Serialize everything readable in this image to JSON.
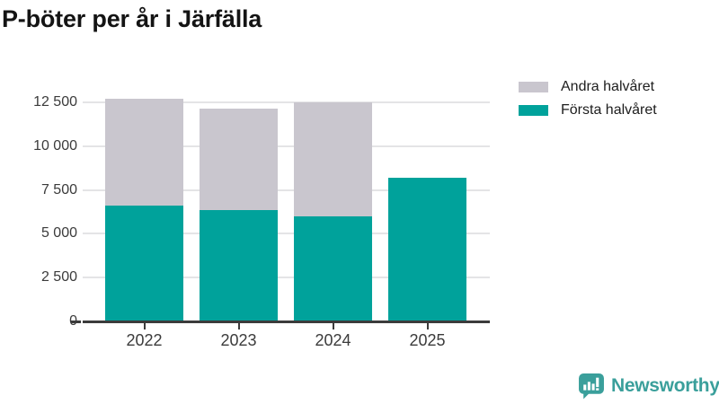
{
  "title": "P-böter per år i Järfälla",
  "legend": {
    "items": [
      {
        "label": "Andra halvåret",
        "color": "#c9c6ce"
      },
      {
        "label": "Första halvåret",
        "color": "#00a29b"
      }
    ]
  },
  "branding": {
    "logo_text": "Newsworthy",
    "logo_color": "#3a9f9b"
  },
  "chart_data": {
    "type": "bar",
    "stacked": true,
    "title": "P-böter per år i Järfälla",
    "categories": [
      "2022",
      "2023",
      "2024",
      "2025"
    ],
    "series": [
      {
        "name": "Första halvåret",
        "color": "#00a29b",
        "values": [
          6600,
          6350,
          6000,
          8200
        ]
      },
      {
        "name": "Andra halvåret",
        "color": "#c9c6ce",
        "values": [
          6100,
          5800,
          6500,
          0
        ]
      }
    ],
    "totals": [
      12700,
      12150,
      12500,
      8200
    ],
    "xlabel": "",
    "ylabel": "",
    "ylim": [
      0,
      12960
    ],
    "yticks": [
      {
        "value": 0,
        "label": "0"
      },
      {
        "value": 2500,
        "label": "2 500"
      },
      {
        "value": 5000,
        "label": "5 000"
      },
      {
        "value": 7500,
        "label": "7 500"
      },
      {
        "value": 10000,
        "label": "10 000"
      },
      {
        "value": 12500,
        "label": "12 500"
      }
    ],
    "grid": true,
    "legend_position": "top-right"
  }
}
